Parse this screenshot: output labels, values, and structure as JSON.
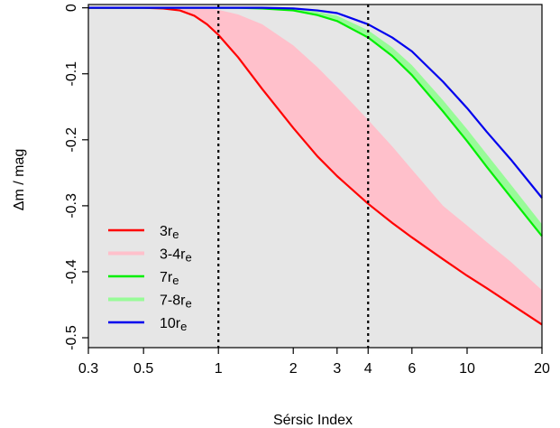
{
  "chart_data": {
    "type": "line",
    "xlabel": "Sérsic Index",
    "ylabel": "Δm / mag",
    "xscale": "log",
    "xlim": [
      0.3,
      20
    ],
    "ylim": [
      -0.515,
      0.005
    ],
    "xticks": [
      0.3,
      0.5,
      1,
      2,
      3,
      4,
      6,
      10,
      20
    ],
    "xtick_labels": [
      "0.3",
      "0.5",
      "1",
      "2",
      "3",
      "4",
      "6",
      "10",
      "20"
    ],
    "yticks": [
      0,
      -0.1,
      -0.2,
      -0.3,
      -0.4,
      -0.5
    ],
    "ytick_labels": [
      "0",
      "-0.1",
      "-0.2",
      "-0.3",
      "-0.4",
      "-0.5"
    ],
    "vlines": [
      1,
      4
    ],
    "background": "#e6e6e6",
    "grid": false,
    "legend_position": "bottom-left",
    "legend": [
      {
        "label": "3re",
        "base": "3r",
        "sub": "e",
        "color": "#ff0000",
        "kind": "line"
      },
      {
        "label": "3-4re",
        "base": "3-4r",
        "sub": "e",
        "color": "#ffc0cb",
        "kind": "band"
      },
      {
        "label": "7re",
        "base": "7r",
        "sub": "e",
        "color": "#00ee00",
        "kind": "line"
      },
      {
        "label": "7-8re",
        "base": "7-8r",
        "sub": "e",
        "color": "#98fb98",
        "kind": "band"
      },
      {
        "label": "10re",
        "base": "10r",
        "sub": "e",
        "color": "#0000ee",
        "kind": "line"
      }
    ],
    "x": [
      0.3,
      0.4,
      0.5,
      0.6,
      0.7,
      0.8,
      0.9,
      1.0,
      1.2,
      1.5,
      2.0,
      2.5,
      3.0,
      4.0,
      5.0,
      6.0,
      8.0,
      10.0,
      12.0,
      15.0,
      20.0
    ],
    "series": [
      {
        "name": "3-4re",
        "kind": "band",
        "color": "#ffc0cb",
        "lower": [
          0,
          0,
          0,
          -0.001,
          -0.004,
          -0.012,
          -0.025,
          -0.041,
          -0.075,
          -0.123,
          -0.182,
          -0.225,
          -0.255,
          -0.297,
          -0.326,
          -0.348,
          -0.381,
          -0.406,
          -0.425,
          -0.449,
          -0.48
        ],
        "upper": [
          0,
          0,
          0,
          0,
          0,
          0,
          -0.001,
          -0.003,
          -0.01,
          -0.025,
          -0.057,
          -0.09,
          -0.12,
          -0.17,
          -0.21,
          -0.245,
          -0.3,
          -0.33,
          -0.355,
          -0.385,
          -0.428
        ]
      },
      {
        "name": "7-8re",
        "kind": "band",
        "color": "#98fb98",
        "lower": [
          0,
          0,
          0,
          0,
          0,
          0,
          0,
          0,
          0,
          -0.001,
          -0.004,
          -0.011,
          -0.02,
          -0.045,
          -0.073,
          -0.102,
          -0.157,
          -0.202,
          -0.241,
          -0.287,
          -0.346
        ],
        "upper": [
          0,
          0,
          0,
          0,
          0,
          0,
          0,
          0,
          0,
          0,
          -0.002,
          -0.006,
          -0.012,
          -0.034,
          -0.06,
          -0.087,
          -0.14,
          -0.184,
          -0.222,
          -0.268,
          -0.328
        ]
      },
      {
        "name": "3re",
        "kind": "line",
        "color": "#ff0000",
        "values": [
          0,
          0,
          0,
          -0.001,
          -0.004,
          -0.012,
          -0.025,
          -0.041,
          -0.075,
          -0.123,
          -0.182,
          -0.225,
          -0.255,
          -0.297,
          -0.326,
          -0.348,
          -0.381,
          -0.406,
          -0.425,
          -0.449,
          -0.48
        ]
      },
      {
        "name": "7re",
        "kind": "line",
        "color": "#00ee00",
        "values": [
          0,
          0,
          0,
          0,
          0,
          0,
          0,
          0,
          0,
          -0.001,
          -0.004,
          -0.011,
          -0.02,
          -0.045,
          -0.073,
          -0.102,
          -0.157,
          -0.202,
          -0.241,
          -0.287,
          -0.346
        ]
      },
      {
        "name": "10re",
        "kind": "line",
        "color": "#0000ee",
        "values": [
          0,
          0,
          0,
          0,
          0,
          0,
          0,
          0,
          0,
          0,
          -0.001,
          -0.004,
          -0.008,
          -0.025,
          -0.045,
          -0.066,
          -0.112,
          -0.152,
          -0.188,
          -0.23,
          -0.288
        ]
      }
    ]
  }
}
